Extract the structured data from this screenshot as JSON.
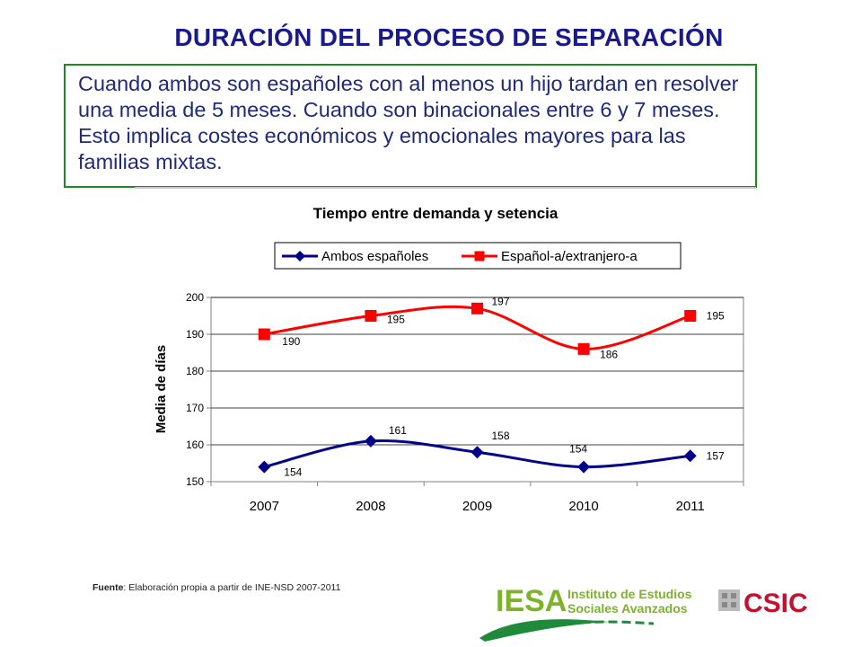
{
  "slide": {
    "title": "DURACIÓN DEL PROCESO DE SEPARACIÓN",
    "body": "Cuando ambos son españoles con al menos un hijo tardan en resolver una media de 5 meses. Cuando son binacionales entre 6 y 7 meses. Esto implica costes económicos y emocionales mayores para las familias mixtas."
  },
  "chart_data": {
    "type": "line",
    "title": "Tiempo entre demanda y setencia",
    "ylabel": "Media de días",
    "xlabel": "",
    "categories": [
      "2007",
      "2008",
      "2009",
      "2010",
      "2011"
    ],
    "ylim": [
      150,
      200
    ],
    "yticks": [
      150,
      160,
      170,
      180,
      190,
      200
    ],
    "grid": true,
    "legend": "top",
    "series": [
      {
        "name": "Ambos españoles",
        "values": [
          154,
          161,
          158,
          154,
          157
        ],
        "color": "#00008b",
        "marker": "diamond"
      },
      {
        "name": "Español-a/extranjero-a",
        "values": [
          190,
          195,
          197,
          186,
          195
        ],
        "color": "#ff0000",
        "marker": "square"
      }
    ]
  },
  "footer": {
    "source_label": "Fuente",
    "source_text": ": Elaboración propia a partir de INE-NSD 2007-2011",
    "iesa_acronym": "IESA",
    "iesa_line1": "Instituto de Estudios",
    "iesa_line2": "Sociales Avanzados",
    "csic": "CSIC",
    "iesa_color": "#7cb32b",
    "csic_color": "#c8102e"
  }
}
